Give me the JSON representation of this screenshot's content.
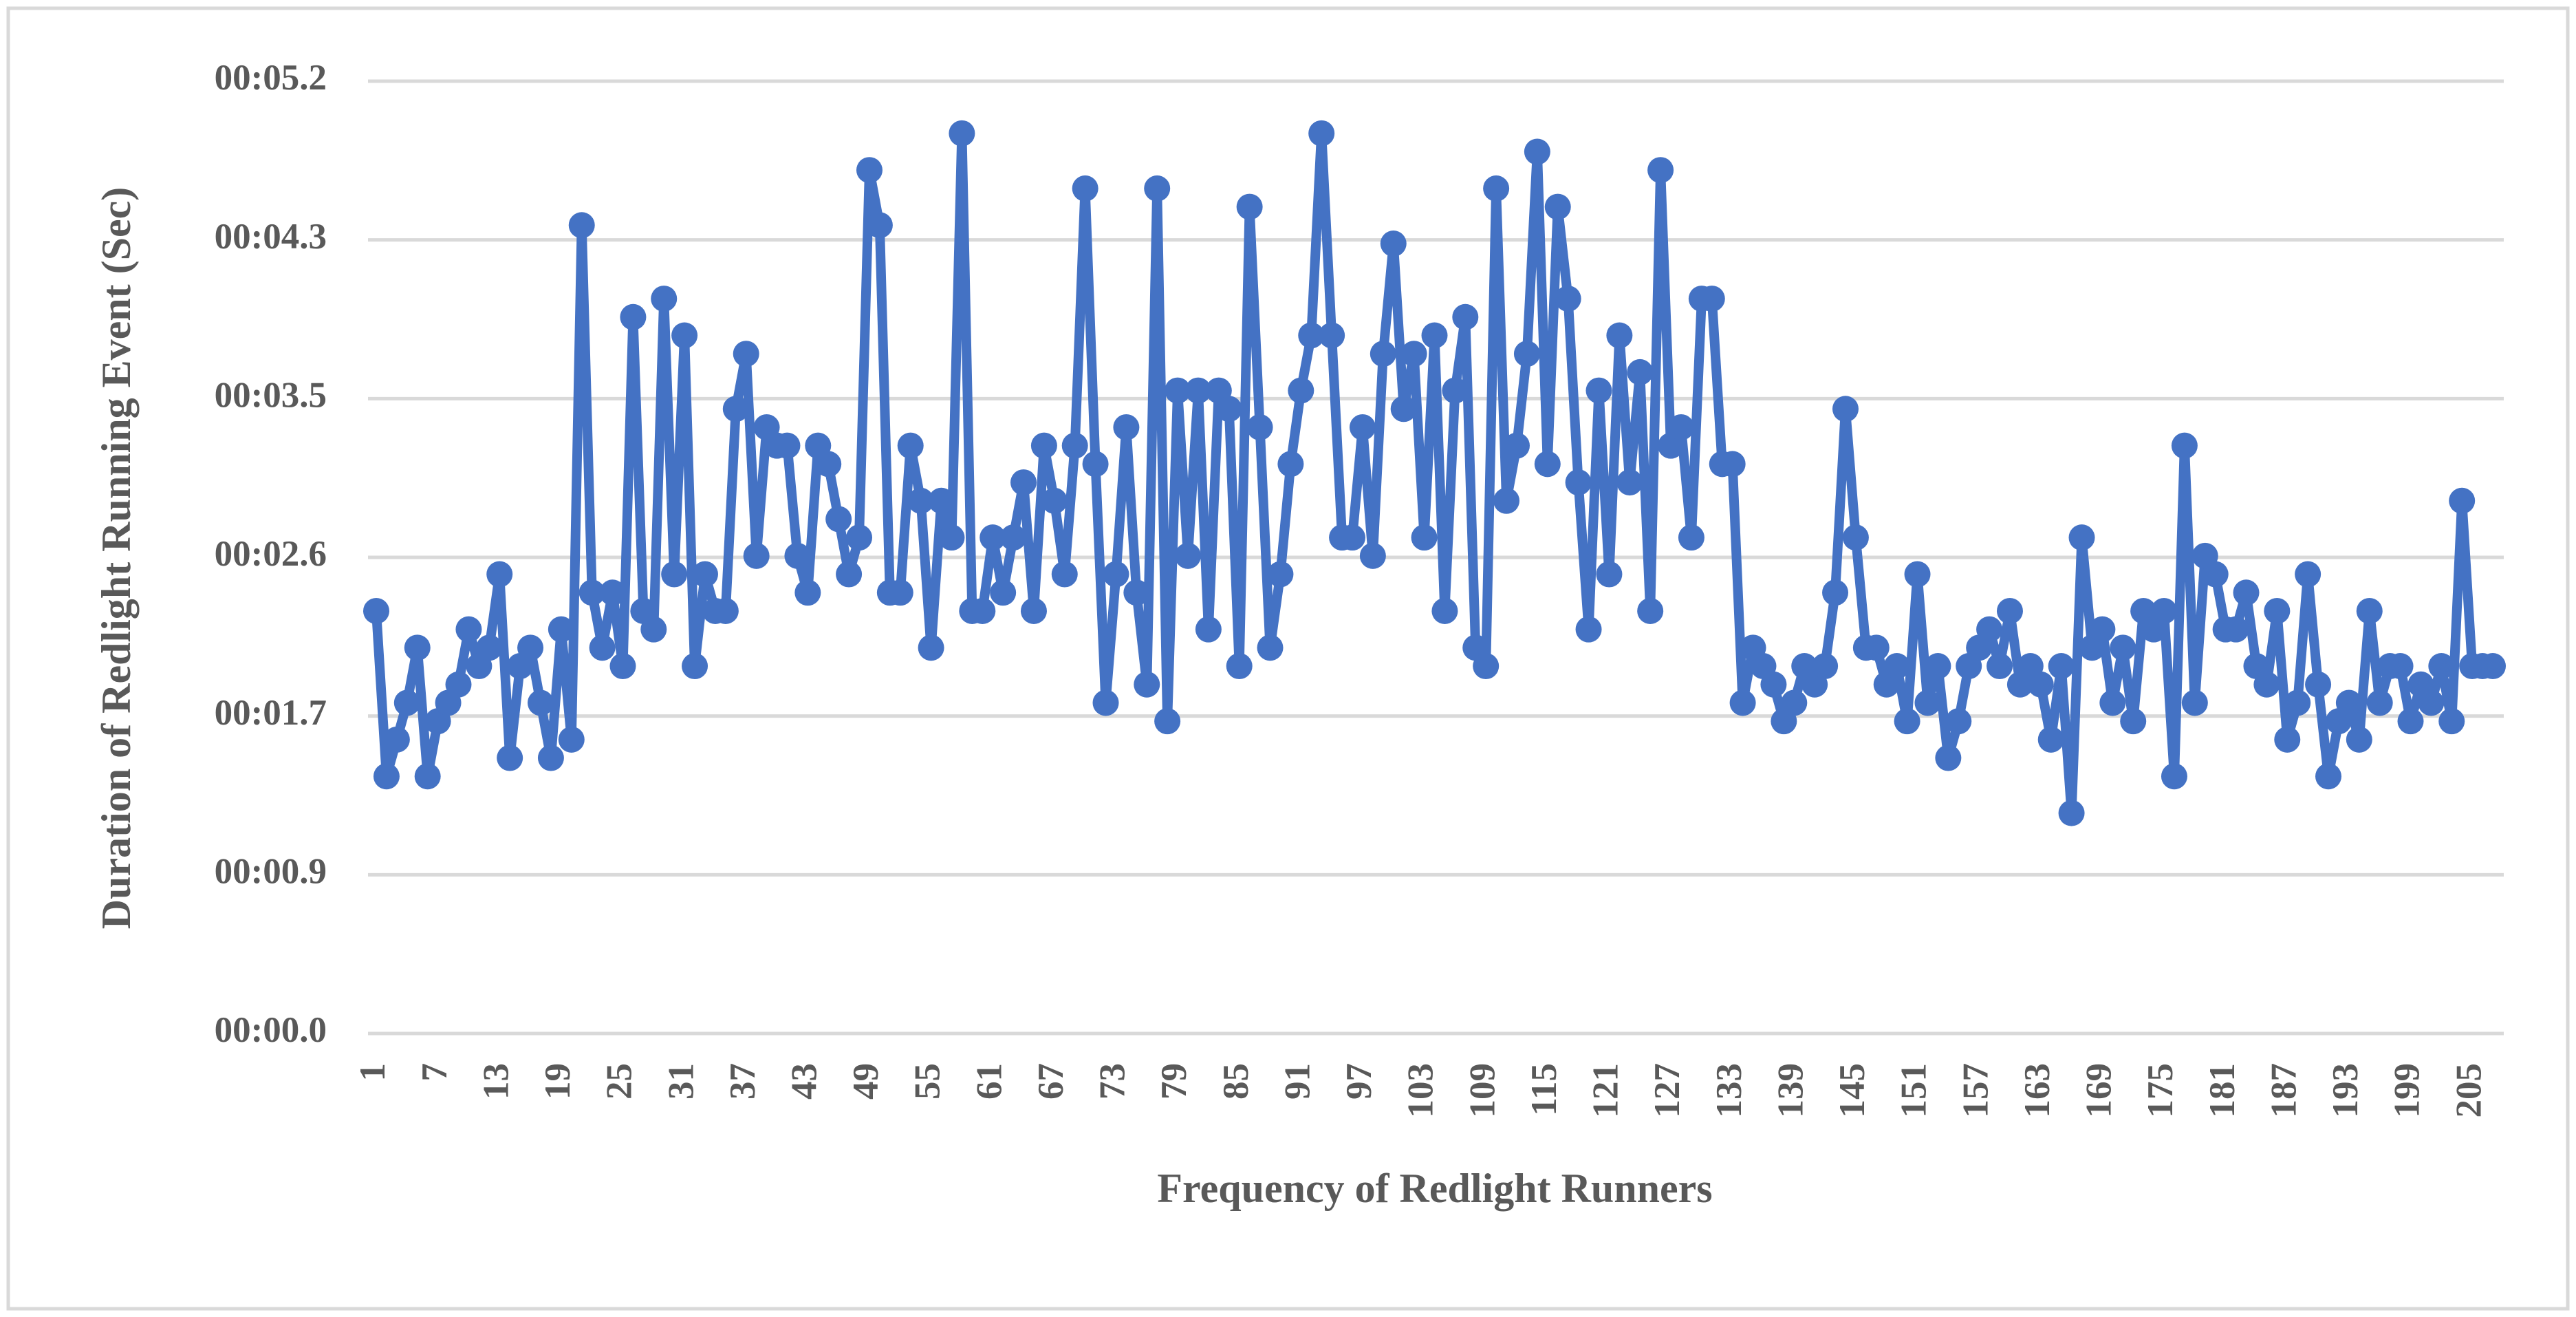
{
  "chart_data": {
    "type": "line",
    "x_label": "Frequency of Redlight Runners",
    "y_label": "Duration of Redlight Running Event (Sec)",
    "categories": [
      1,
      null,
      null,
      null,
      null,
      null,
      7,
      null,
      null,
      null,
      null,
      null,
      13,
      null,
      null,
      null,
      null,
      null,
      19,
      null,
      null,
      null,
      null,
      null,
      25,
      null,
      null,
      null,
      null,
      null,
      31,
      null,
      null,
      null,
      null,
      null,
      37,
      null,
      null,
      null,
      null,
      null,
      43,
      null,
      null,
      null,
      null,
      null,
      49,
      null,
      null,
      null,
      null,
      null,
      55,
      null,
      null,
      null,
      null,
      null,
      61,
      null,
      null,
      null,
      null,
      null,
      67,
      null,
      null,
      null,
      null,
      null,
      73,
      null,
      null,
      null,
      null,
      null,
      79,
      null,
      null,
      null,
      null,
      null,
      85,
      null,
      null,
      null,
      null,
      null,
      91,
      null,
      null,
      null,
      null,
      null,
      97,
      null,
      null,
      null,
      null,
      null,
      103,
      null,
      null,
      null,
      null,
      null,
      109,
      null,
      null,
      null,
      null,
      null,
      115,
      null,
      null,
      null,
      null,
      null,
      121,
      null,
      null,
      null,
      null,
      null,
      127,
      null,
      null,
      null,
      null,
      null,
      133,
      null,
      null,
      null,
      null,
      null,
      139,
      null,
      null,
      null,
      null,
      null,
      145,
      null,
      null,
      null,
      null,
      null,
      151,
      null,
      null,
      null,
      null,
      null,
      157,
      null,
      null,
      null,
      null,
      null,
      163,
      null,
      null,
      null,
      null,
      null,
      169,
      null,
      null,
      null,
      null,
      null,
      175,
      null,
      null,
      null,
      null,
      null,
      181,
      null,
      null,
      null,
      null,
      null,
      187,
      null,
      null,
      null,
      null,
      null,
      193,
      null,
      null,
      null,
      null,
      null,
      199,
      null,
      null,
      null,
      null,
      null,
      205,
      null,
      null
    ],
    "values": [
      2.3,
      1.4,
      1.6,
      1.8,
      2.1,
      1.4,
      1.7,
      1.8,
      1.9,
      2.2,
      2.0,
      2.1,
      2.5,
      1.5,
      2.0,
      2.1,
      1.8,
      1.5,
      2.2,
      1.6,
      4.4,
      2.4,
      2.1,
      2.4,
      2.0,
      3.9,
      2.3,
      2.2,
      4.0,
      2.5,
      3.8,
      2.0,
      2.5,
      2.3,
      2.3,
      3.4,
      3.7,
      2.6,
      3.3,
      3.2,
      3.2,
      2.6,
      2.4,
      3.2,
      3.1,
      2.8,
      2.5,
      2.7,
      4.7,
      4.4,
      2.4,
      2.4,
      3.2,
      2.9,
      2.1,
      2.9,
      2.7,
      4.9,
      2.3,
      2.3,
      2.7,
      2.4,
      2.7,
      3.0,
      2.3,
      3.2,
      2.9,
      2.5,
      3.2,
      4.6,
      3.1,
      1.8,
      2.5,
      3.3,
      2.4,
      1.9,
      4.6,
      1.7,
      3.5,
      2.6,
      3.5,
      2.2,
      3.5,
      3.4,
      2.0,
      4.5,
      3.3,
      2.1,
      2.5,
      3.1,
      3.5,
      3.8,
      4.9,
      3.8,
      2.7,
      2.7,
      3.3,
      2.6,
      3.7,
      4.3,
      3.4,
      3.7,
      2.7,
      3.8,
      2.3,
      3.5,
      3.9,
      2.1,
      2.0,
      4.6,
      2.9,
      3.2,
      3.7,
      4.8,
      3.1,
      4.5,
      4.0,
      3.0,
      2.2,
      3.5,
      2.5,
      3.8,
      3.0,
      3.6,
      2.3,
      4.7,
      3.2,
      3.3,
      2.7,
      4.0,
      4.0,
      3.1,
      3.1,
      1.8,
      2.1,
      2.0,
      1.9,
      1.7,
      1.8,
      2.0,
      1.9,
      2.0,
      2.4,
      3.4,
      2.7,
      2.1,
      2.1,
      1.9,
      2.0,
      1.7,
      2.5,
      1.8,
      2.0,
      1.5,
      1.7,
      2.0,
      2.1,
      2.2,
      2.0,
      2.3,
      1.9,
      2.0,
      1.9,
      1.6,
      2.0,
      1.2,
      2.7,
      2.1,
      2.2,
      1.8,
      2.1,
      1.7,
      2.3,
      2.2,
      2.3,
      1.4,
      3.2,
      1.8,
      2.6,
      2.5,
      2.2,
      2.2,
      2.4,
      2.0,
      1.9,
      2.3,
      1.6,
      1.8,
      2.5,
      1.9,
      1.4,
      1.7,
      1.8,
      1.6,
      2.3,
      1.8,
      2.0,
      2.0,
      1.7,
      1.9,
      1.8,
      2.0,
      1.7,
      2.9,
      2.0,
      2.0,
      2.0
    ],
    "color": "#4472c4",
    "ylim": [
      0,
      5.184
    ],
    "yticks": [
      {
        "value": 0,
        "label": "00:00.0"
      },
      {
        "value": 0.864,
        "label": "00:00.9"
      },
      {
        "value": 1.728,
        "label": "00:01.7"
      },
      {
        "value": 2.592,
        "label": "00:02.6"
      },
      {
        "value": 3.456,
        "label": "00:03.5"
      },
      {
        "value": 4.32,
        "label": "00:04.3"
      },
      {
        "value": 5.184,
        "label": "00:05.2"
      }
    ],
    "grid": true
  }
}
